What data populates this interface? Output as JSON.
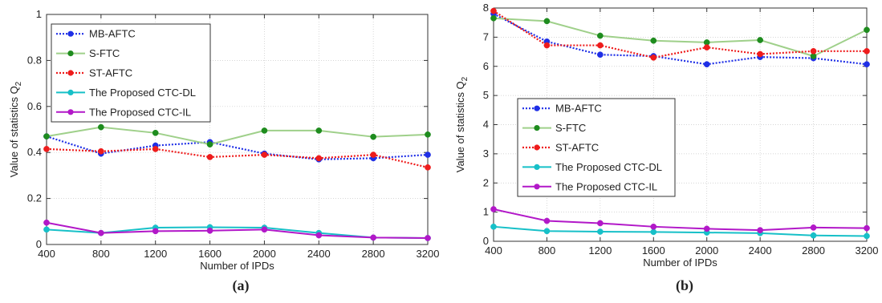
{
  "chart_data": [
    {
      "type": "line",
      "caption": "(a)",
      "xlabel": "Number of IPDs",
      "ylabel": "Value of statistics Q",
      "ylabel_sub": "2",
      "x": [
        400,
        800,
        1200,
        1600,
        2000,
        2400,
        2800,
        3200
      ],
      "xlim": [
        400,
        3200
      ],
      "ylim": [
        0,
        1
      ],
      "yticks": [
        0,
        0.2,
        0.4,
        0.6,
        0.8,
        1
      ],
      "ytick_labels": [
        "0",
        "0.2",
        "0.4",
        "0.6",
        "0.8",
        "1"
      ],
      "grid": true,
      "legend": "top-left",
      "series": [
        {
          "name": "MB-AFTC",
          "color": "#1f2fe6",
          "style": "dotted",
          "values": [
            0.47,
            0.395,
            0.43,
            0.445,
            0.395,
            0.37,
            0.375,
            0.39
          ]
        },
        {
          "name": "S-FTC",
          "color": "#9fd08a",
          "style": "solid",
          "marker_color": "#1e8c1e",
          "values": [
            0.47,
            0.51,
            0.485,
            0.435,
            0.495,
            0.495,
            0.468,
            0.478
          ]
        },
        {
          "name": "ST-AFTC",
          "color": "#ee1c1c",
          "style": "dotted",
          "values": [
            0.415,
            0.405,
            0.415,
            0.38,
            0.39,
            0.375,
            0.39,
            0.335
          ]
        },
        {
          "name": "The Proposed CTC-DL",
          "color": "#17c0c8",
          "style": "solid",
          "values": [
            0.065,
            0.05,
            0.073,
            0.075,
            0.073,
            0.05,
            0.03,
            0.028
          ]
        },
        {
          "name": "The Proposed CTC-IL",
          "color": "#b218c8",
          "style": "solid",
          "values": [
            0.095,
            0.05,
            0.058,
            0.06,
            0.065,
            0.04,
            0.03,
            0.028
          ]
        }
      ]
    },
    {
      "type": "line",
      "caption": "(b)",
      "xlabel": "Number of IPDs",
      "ylabel": "Value of statistics Q",
      "ylabel_sub": "2",
      "x": [
        400,
        800,
        1200,
        1600,
        2000,
        2400,
        2800,
        3200
      ],
      "xlim": [
        400,
        3200
      ],
      "ylim": [
        0,
        8
      ],
      "yticks": [
        0,
        1,
        2,
        3,
        4,
        5,
        6,
        7,
        8
      ],
      "ytick_labels": [
        "0",
        "1",
        "2",
        "3",
        "4",
        "5",
        "6",
        "7",
        "8"
      ],
      "grid": true,
      "legend": "center-left",
      "series": [
        {
          "name": "MB-AFTC",
          "color": "#1f2fe6",
          "style": "dotted",
          "values": [
            7.8,
            6.85,
            6.4,
            6.35,
            6.07,
            6.32,
            6.28,
            6.07
          ]
        },
        {
          "name": "S-FTC",
          "color": "#9fd08a",
          "style": "solid",
          "marker_color": "#1e8c1e",
          "values": [
            7.65,
            7.55,
            7.05,
            6.88,
            6.82,
            6.9,
            6.35,
            7.25
          ]
        },
        {
          "name": "ST-AFTC",
          "color": "#ee1c1c",
          "style": "dotted",
          "values": [
            7.9,
            6.72,
            6.72,
            6.3,
            6.65,
            6.42,
            6.52,
            6.52
          ]
        },
        {
          "name": "The Proposed CTC-DL",
          "color": "#17c0c8",
          "style": "solid",
          "values": [
            0.5,
            0.35,
            0.33,
            0.32,
            0.3,
            0.28,
            0.2,
            0.18
          ]
        },
        {
          "name": "The Proposed CTC-IL",
          "color": "#b218c8",
          "style": "solid",
          "values": [
            1.1,
            0.7,
            0.62,
            0.5,
            0.43,
            0.38,
            0.47,
            0.45
          ]
        }
      ]
    }
  ]
}
